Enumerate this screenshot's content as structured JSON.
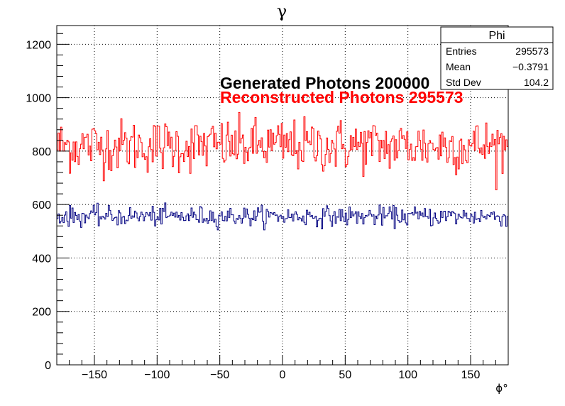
{
  "chart_data": {
    "type": "histogram",
    "title": "γ",
    "xlabel": "ϕ°",
    "ylabel": "",
    "xlim": [
      -180,
      180
    ],
    "ylim": [
      0,
      1270
    ],
    "x_ticks": [
      -150,
      -100,
      -50,
      0,
      50,
      100,
      150
    ],
    "x_tick_labels": [
      "−150",
      "−100",
      "−50",
      "0",
      "50",
      "100",
      "150"
    ],
    "y_ticks": [
      0,
      200,
      400,
      600,
      800,
      1000,
      1200
    ],
    "y_tick_labels": [
      "0",
      "200",
      "400",
      "600",
      "800",
      "1000",
      "1200"
    ],
    "grid": true,
    "n_bins": 360,
    "series": [
      {
        "name": "Phi",
        "color": "#ff0000",
        "mean_level": 820,
        "spread": 50,
        "min": 655,
        "max": 1060
      },
      {
        "name": "",
        "color": "#000080",
        "mean_level": 556,
        "spread": 18,
        "min": 505,
        "max": 618
      }
    ],
    "annotations": [
      {
        "text": "Generated Photons 200000",
        "color": "#000000"
      },
      {
        "text": "Reconstructed Photons 295573",
        "color": "#ff0000"
      }
    ],
    "stats_box": {
      "title": "Phi",
      "rows": [
        {
          "label": "Entries",
          "value": "295573"
        },
        {
          "label": "Mean",
          "value": "−0.3791"
        },
        {
          "label": "Std Dev",
          "value": "104.2"
        }
      ]
    }
  }
}
